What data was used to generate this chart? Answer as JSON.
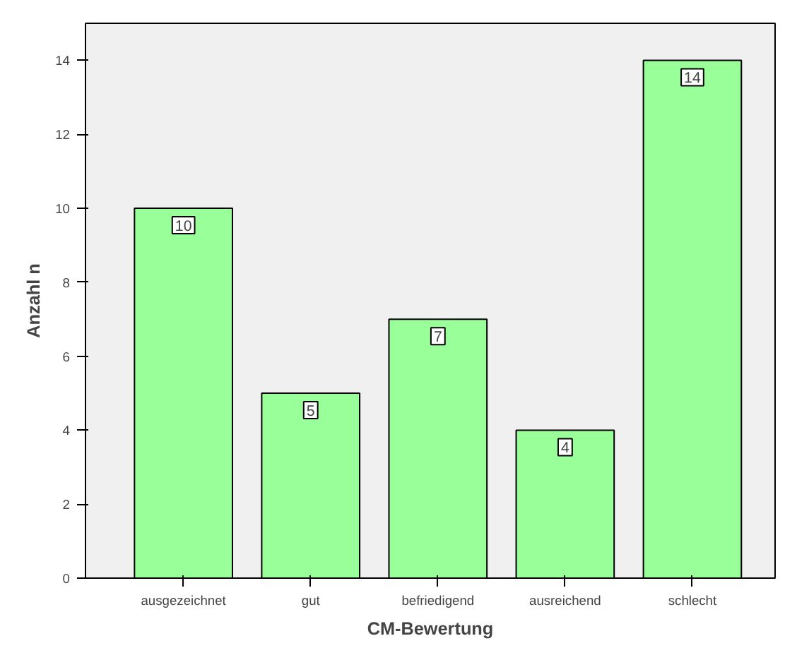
{
  "chart_data": {
    "type": "bar",
    "categories": [
      "ausgezeichnet",
      "gut",
      "befriedigend",
      "ausreichend",
      "schlecht"
    ],
    "values": [
      10,
      5,
      7,
      4,
      14
    ],
    "color": "#99ff99",
    "xlabel": "CM-Bewertung",
    "ylabel": "Anzahl n",
    "ylim": [
      0,
      15
    ],
    "yticks": [
      0,
      2,
      4,
      6,
      8,
      10,
      12,
      14
    ],
    "grid": false,
    "data_labels": true
  }
}
